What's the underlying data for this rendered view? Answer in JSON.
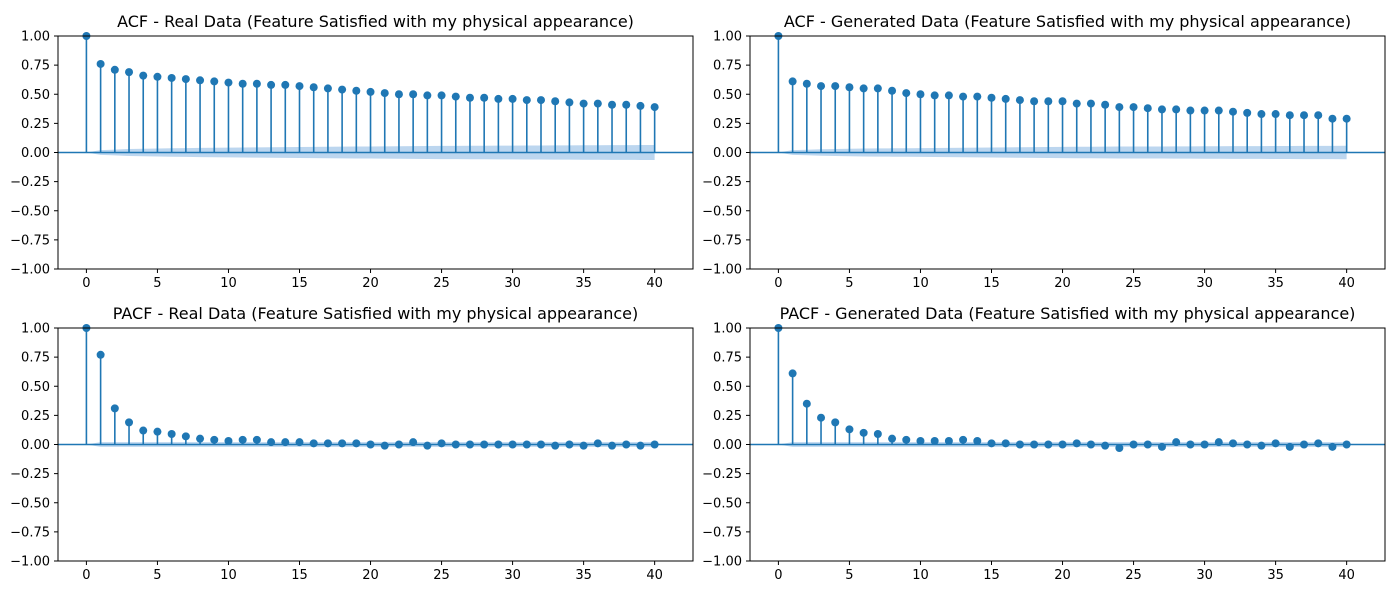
{
  "colors": {
    "stem": "#1f77b4",
    "band": "#a6c8ea",
    "axis": "#000000",
    "background": "#ffffff"
  },
  "chart_data": [
    {
      "type": "stem",
      "title": "ACF - Real Data (Feature Satisfied with my physical appearance)",
      "xlim": [
        -2,
        42.7
      ],
      "ylim": [
        -1,
        1
      ],
      "xticks": [
        0,
        5,
        10,
        15,
        20,
        25,
        30,
        35,
        40
      ],
      "yticks": [
        -1.0,
        -0.75,
        -0.5,
        -0.25,
        0.0,
        0.25,
        0.5,
        0.75,
        1.0
      ],
      "x_start": 0,
      "values": [
        1.0,
        0.76,
        0.71,
        0.69,
        0.66,
        0.65,
        0.64,
        0.63,
        0.62,
        0.61,
        0.6,
        0.59,
        0.59,
        0.58,
        0.58,
        0.57,
        0.56,
        0.55,
        0.54,
        0.53,
        0.52,
        0.51,
        0.5,
        0.5,
        0.49,
        0.49,
        0.48,
        0.47,
        0.47,
        0.46,
        0.46,
        0.45,
        0.45,
        0.44,
        0.43,
        0.42,
        0.42,
        0.41,
        0.41,
        0.4,
        0.39
      ],
      "confidence_band_upper": [
        0.0,
        0.02,
        0.025,
        0.03,
        0.032,
        0.034,
        0.036,
        0.038,
        0.04,
        0.041,
        0.042,
        0.043,
        0.044,
        0.045,
        0.046,
        0.047,
        0.048,
        0.049,
        0.05,
        0.051,
        0.052,
        0.053,
        0.054,
        0.055,
        0.056,
        0.057,
        0.057,
        0.058,
        0.058,
        0.059,
        0.059,
        0.06,
        0.06,
        0.061,
        0.061,
        0.062,
        0.062,
        0.063,
        0.063,
        0.064,
        0.064
      ]
    },
    {
      "type": "stem",
      "title": "ACF - Generated Data (Feature Satisfied with my physical appearance)",
      "xlim": [
        -2,
        42.7
      ],
      "ylim": [
        -1,
        1
      ],
      "xticks": [
        0,
        5,
        10,
        15,
        20,
        25,
        30,
        35,
        40
      ],
      "yticks": [
        -1.0,
        -0.75,
        -0.5,
        -0.25,
        0.0,
        0.25,
        0.5,
        0.75,
        1.0
      ],
      "x_start": 0,
      "values": [
        1.0,
        0.61,
        0.59,
        0.57,
        0.57,
        0.56,
        0.55,
        0.55,
        0.53,
        0.51,
        0.5,
        0.49,
        0.49,
        0.48,
        0.48,
        0.47,
        0.46,
        0.45,
        0.44,
        0.44,
        0.44,
        0.42,
        0.42,
        0.41,
        0.39,
        0.39,
        0.38,
        0.37,
        0.37,
        0.36,
        0.36,
        0.36,
        0.35,
        0.34,
        0.33,
        0.33,
        0.32,
        0.32,
        0.32,
        0.29,
        0.29
      ],
      "confidence_band_upper": [
        0.0,
        0.02,
        0.024,
        0.028,
        0.03,
        0.032,
        0.034,
        0.035,
        0.036,
        0.037,
        0.038,
        0.039,
        0.04,
        0.041,
        0.042,
        0.043,
        0.044,
        0.045,
        0.046,
        0.047,
        0.048,
        0.049,
        0.049,
        0.05,
        0.051,
        0.051,
        0.052,
        0.052,
        0.053,
        0.053,
        0.054,
        0.054,
        0.055,
        0.055,
        0.055,
        0.056,
        0.056,
        0.057,
        0.057,
        0.057,
        0.058
      ]
    },
    {
      "type": "stem",
      "title": "PACF - Real Data (Feature Satisfied with my physical appearance)",
      "xlim": [
        -2,
        42.7
      ],
      "ylim": [
        -1,
        1
      ],
      "xticks": [
        0,
        5,
        10,
        15,
        20,
        25,
        30,
        35,
        40
      ],
      "yticks": [
        -1.0,
        -0.75,
        -0.5,
        -0.25,
        0.0,
        0.25,
        0.5,
        0.75,
        1.0
      ],
      "x_start": 0,
      "values": [
        1.0,
        0.77,
        0.31,
        0.19,
        0.12,
        0.11,
        0.09,
        0.07,
        0.05,
        0.04,
        0.03,
        0.04,
        0.04,
        0.02,
        0.02,
        0.02,
        0.01,
        0.01,
        0.01,
        0.01,
        0.0,
        -0.01,
        0.0,
        0.02,
        -0.01,
        0.01,
        0.0,
        0.0,
        0.0,
        0.0,
        0.0,
        0.0,
        0.0,
        -0.01,
        0.0,
        -0.01,
        0.01,
        -0.01,
        0.0,
        -0.01,
        0.0
      ],
      "confidence_band_upper": [
        0.0,
        0.02,
        0.02,
        0.02,
        0.02,
        0.02,
        0.02,
        0.02,
        0.02,
        0.02,
        0.02,
        0.02,
        0.02,
        0.02,
        0.02,
        0.02,
        0.02,
        0.02,
        0.02,
        0.02,
        0.02,
        0.02,
        0.02,
        0.02,
        0.02,
        0.02,
        0.02,
        0.02,
        0.02,
        0.02,
        0.02,
        0.02,
        0.02,
        0.02,
        0.02,
        0.02,
        0.02,
        0.02,
        0.02,
        0.02,
        0.02
      ]
    },
    {
      "type": "stem",
      "title": "PACF - Generated Data (Feature Satisfied with my physical appearance)",
      "xlim": [
        -2,
        42.7
      ],
      "ylim": [
        -1,
        1
      ],
      "xticks": [
        0,
        5,
        10,
        15,
        20,
        25,
        30,
        35,
        40
      ],
      "yticks": [
        -1.0,
        -0.75,
        -0.5,
        -0.25,
        0.0,
        0.25,
        0.5,
        0.75,
        1.0
      ],
      "x_start": 0,
      "values": [
        1.0,
        0.61,
        0.35,
        0.23,
        0.19,
        0.13,
        0.1,
        0.09,
        0.05,
        0.04,
        0.03,
        0.03,
        0.03,
        0.04,
        0.03,
        0.01,
        0.01,
        0.0,
        0.0,
        0.0,
        0.0,
        0.01,
        0.0,
        -0.01,
        -0.03,
        0.0,
        0.0,
        -0.02,
        0.02,
        0.0,
        0.0,
        0.02,
        0.01,
        0.0,
        -0.01,
        0.01,
        -0.02,
        0.0,
        0.01,
        -0.02,
        0.0
      ],
      "confidence_band_upper": [
        0.0,
        0.02,
        0.02,
        0.02,
        0.02,
        0.02,
        0.02,
        0.02,
        0.02,
        0.02,
        0.02,
        0.02,
        0.02,
        0.02,
        0.02,
        0.02,
        0.02,
        0.02,
        0.02,
        0.02,
        0.02,
        0.02,
        0.02,
        0.02,
        0.02,
        0.02,
        0.02,
        0.02,
        0.02,
        0.02,
        0.02,
        0.02,
        0.02,
        0.02,
        0.02,
        0.02,
        0.02,
        0.02,
        0.02,
        0.02,
        0.02
      ]
    }
  ]
}
